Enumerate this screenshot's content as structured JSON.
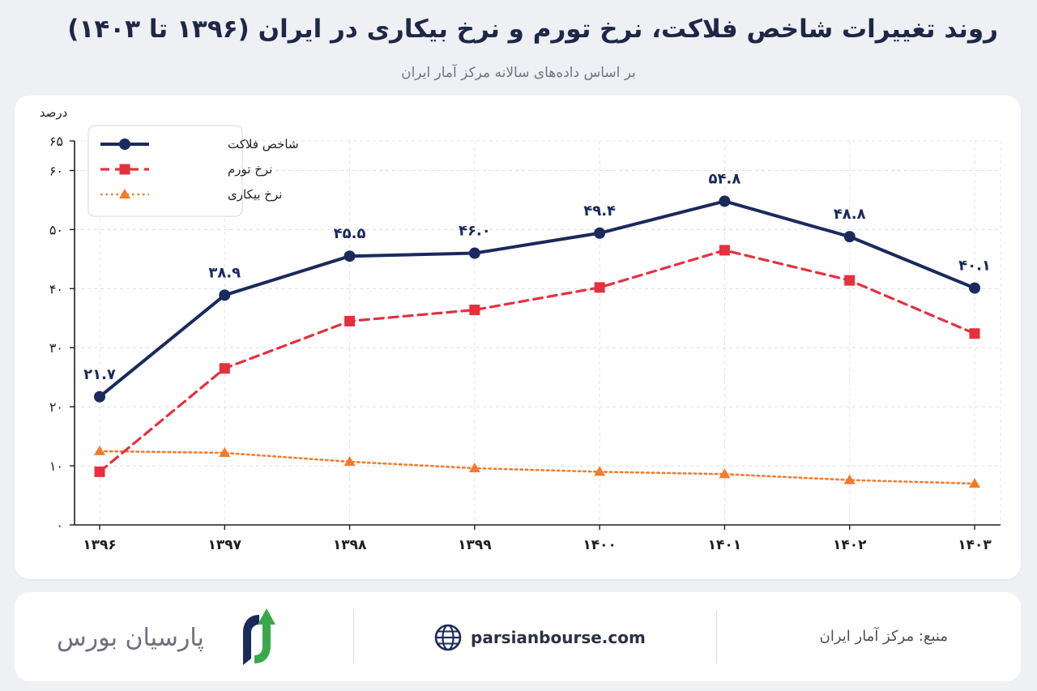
{
  "title": "روند تغییرات شاخص فلاکت، نرخ تورم و نرخ بیکاری در ایران (۱۳۹۶ تا ۱۴۰۳)",
  "subtitle": "بر اساس داده‌های سالانه مرکز آمار ایران",
  "chart_data": {
    "type": "line",
    "title": "روند تغییرات شاخص فلاکت، نرخ تورم و نرخ بیکاری در ایران (۱۳۹۶ تا ۱۴۰۳)",
    "subtitle": "بر اساس داده‌های سالانه مرکز آمار ایران",
    "ylabel": "درصد",
    "xlabel": "",
    "ylim": [
      0,
      65
    ],
    "yticks": [
      0,
      10,
      20,
      30,
      40,
      50,
      60,
      65
    ],
    "ytick_labels": [
      "۰",
      "۱۰",
      "۲۰",
      "۳۰",
      "۴۰",
      "۵۰",
      "۶۰",
      "۶۵"
    ],
    "categories": [
      "۱۳۹۶",
      "۱۳۹۷",
      "۱۳۹۸",
      "۱۳۹۹",
      "۱۴۰۰",
      "۱۴۰۱",
      "۱۴۰۲",
      "۱۴۰۳"
    ],
    "grid": true,
    "legend_position": "top-left",
    "series": [
      {
        "name": "شاخص فلاکت",
        "color": "#1b2a5c",
        "style": "solid",
        "marker": "circle",
        "values": [
          21.7,
          38.9,
          45.5,
          46.0,
          49.4,
          54.8,
          48.8,
          40.1
        ],
        "data_labels": [
          "۲۱.۷",
          "۳۸.۹",
          "۴۵.۵",
          "۴۶.۰",
          "۴۹.۴",
          "۵۴.۸",
          "۴۸.۸",
          "۴۰.۱"
        ]
      },
      {
        "name": "نرخ تورم",
        "color": "#e5303f",
        "style": "dashed",
        "marker": "square",
        "values": [
          9.0,
          26.5,
          34.5,
          36.4,
          40.2,
          46.5,
          41.4,
          32.4
        ]
      },
      {
        "name": "نرخ بیکاری",
        "color": "#f57a2b",
        "style": "dotted",
        "marker": "triangle",
        "values": [
          12.5,
          12.2,
          10.7,
          9.6,
          9.0,
          8.6,
          7.6,
          7.0
        ]
      }
    ]
  },
  "footer": {
    "source": "منبع: مرکز آمار ایران",
    "website": "parsianbourse.com",
    "website_icon": "globe-icon",
    "brand_name": "پارسیان بورس",
    "brand_colors": [
      "#1b2a5c",
      "#3aa84a"
    ]
  }
}
